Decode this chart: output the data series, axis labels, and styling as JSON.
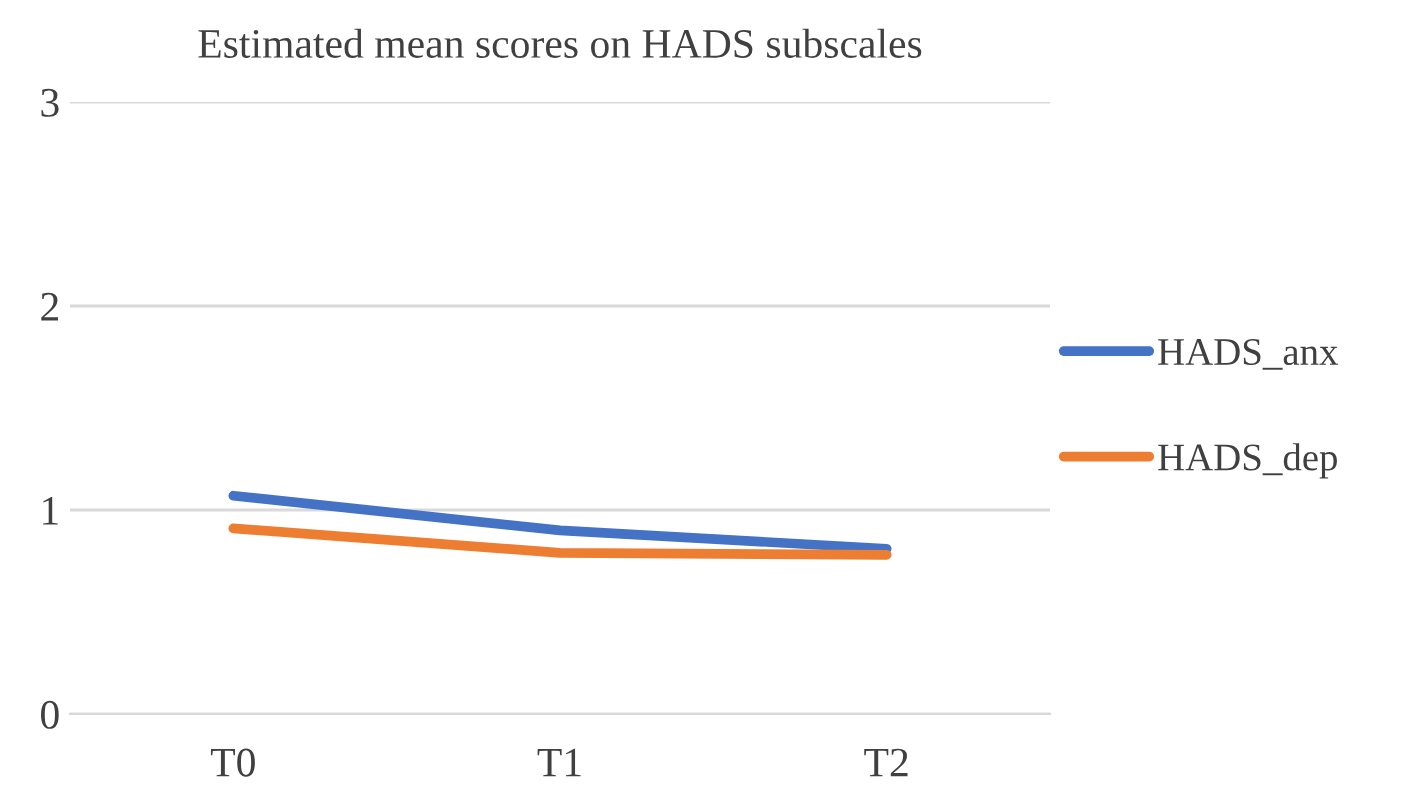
{
  "chart_data": {
    "type": "line",
    "title": "Estimated mean scores on HADS subscales",
    "categories": [
      "T0",
      "T1",
      "T2"
    ],
    "series": [
      {
        "name": "HADS_anx",
        "color": "#4472c4",
        "values": [
          1.07,
          0.9,
          0.81
        ]
      },
      {
        "name": "HADS_dep",
        "color": "#ed7d31",
        "values": [
          0.91,
          0.79,
          0.78
        ]
      }
    ],
    "ylim": [
      0,
      3
    ],
    "yticks": [
      0,
      1,
      2,
      3
    ],
    "grid": "y",
    "legend": "right",
    "marker": "none",
    "line_style": "solid"
  }
}
